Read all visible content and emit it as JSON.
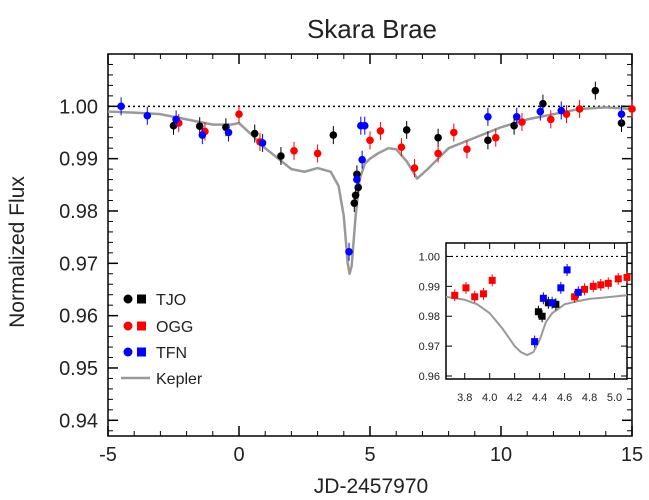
{
  "chart_data": {
    "type": "scatter",
    "title": "Skara Brae",
    "xlabel": "JD-2457970",
    "ylabel": "Normalized Flux",
    "xlim": [
      -5,
      15
    ],
    "ylim": [
      0.937,
      1.01
    ],
    "x_ticks": [
      "-5",
      "0",
      "5",
      "10",
      "15"
    ],
    "y_ticks": [
      "0.94",
      "0.95",
      "0.96",
      "0.97",
      "0.98",
      "0.99",
      "1.00"
    ],
    "reference_line": 1.0,
    "legend": {
      "placement": "bottom-left",
      "entries": [
        {
          "label": "TJO",
          "color": "#000000"
        },
        {
          "label": "OGG",
          "color": "#ff0000"
        },
        {
          "label": "TFN",
          "color": "#0000ff"
        },
        {
          "label": "Kepler",
          "color": "#999999"
        }
      ]
    },
    "series": [
      {
        "name": "TJO",
        "color": "#000000",
        "points": [
          {
            "x": -2.5,
            "y": 0.9963
          },
          {
            "x": -1.5,
            "y": 0.9962
          },
          {
            "x": -0.5,
            "y": 0.996
          },
          {
            "x": 0.6,
            "y": 0.9948
          },
          {
            "x": 1.6,
            "y": 0.9905
          },
          {
            "x": 3.6,
            "y": 0.9945
          },
          {
            "x": 4.4,
            "y": 0.9815
          },
          {
            "x": 4.45,
            "y": 0.983
          },
          {
            "x": 4.5,
            "y": 0.987
          },
          {
            "x": 4.55,
            "y": 0.9845
          },
          {
            "x": 6.4,
            "y": 0.9955
          },
          {
            "x": 7.6,
            "y": 0.994
          },
          {
            "x": 9.5,
            "y": 0.9935
          },
          {
            "x": 10.5,
            "y": 0.9963
          },
          {
            "x": 11.6,
            "y": 1.0005
          },
          {
            "x": 13.6,
            "y": 1.003
          },
          {
            "x": 14.6,
            "y": 0.9968
          }
        ]
      },
      {
        "name": "OGG",
        "color": "#ff0000",
        "points": [
          {
            "x": -2.3,
            "y": 0.9968
          },
          {
            "x": -1.3,
            "y": 0.9952
          },
          {
            "x": 0.0,
            "y": 0.9985
          },
          {
            "x": 0.8,
            "y": 0.9932
          },
          {
            "x": 2.1,
            "y": 0.9915
          },
          {
            "x": 3.0,
            "y": 0.991
          },
          {
            "x": 5.0,
            "y": 0.9935
          },
          {
            "x": 5.4,
            "y": 0.9953
          },
          {
            "x": 6.2,
            "y": 0.9922
          },
          {
            "x": 6.7,
            "y": 0.9882
          },
          {
            "x": 7.6,
            "y": 0.991
          },
          {
            "x": 8.2,
            "y": 0.995
          },
          {
            "x": 8.7,
            "y": 0.9918
          },
          {
            "x": 9.8,
            "y": 0.994
          },
          {
            "x": 10.8,
            "y": 0.997
          },
          {
            "x": 11.9,
            "y": 0.9975
          },
          {
            "x": 12.5,
            "y": 0.9985
          },
          {
            "x": 13.0,
            "y": 0.9995
          },
          {
            "x": 15.0,
            "y": 0.9995
          }
        ]
      },
      {
        "name": "TFN",
        "color": "#0000ff",
        "points": [
          {
            "x": -4.5,
            "y": 1.0
          },
          {
            "x": -3.5,
            "y": 0.9982
          },
          {
            "x": -2.4,
            "y": 0.9975
          },
          {
            "x": -1.4,
            "y": 0.9945
          },
          {
            "x": -0.4,
            "y": 0.995
          },
          {
            "x": 0.9,
            "y": 0.993
          },
          {
            "x": 4.2,
            "y": 0.9722
          },
          {
            "x": 4.5,
            "y": 0.986
          },
          {
            "x": 4.65,
            "y": 0.9963
          },
          {
            "x": 4.7,
            "y": 0.9898
          },
          {
            "x": 4.8,
            "y": 0.9963
          },
          {
            "x": 9.5,
            "y": 0.998
          },
          {
            "x": 10.6,
            "y": 0.998
          },
          {
            "x": 11.5,
            "y": 0.999
          },
          {
            "x": 12.3,
            "y": 0.9992
          },
          {
            "x": 14.6,
            "y": 0.9985
          }
        ]
      }
    ],
    "kepler": {
      "name": "Kepler",
      "color": "#999999",
      "x": [
        -5.0,
        -4.0,
        -3.0,
        -2.0,
        -1.0,
        -0.3,
        0.0,
        0.5,
        1.0,
        1.5,
        2.0,
        2.5,
        3.0,
        3.5,
        3.8,
        4.0,
        4.15,
        4.22,
        4.3,
        4.45,
        4.6,
        4.8,
        5.0,
        5.3,
        5.7,
        6.0,
        6.4,
        6.8,
        7.2,
        7.6,
        8.0,
        9.0,
        10.0,
        11.0,
        12.0,
        13.0,
        14.0,
        15.0
      ],
      "y": [
        0.999,
        0.9988,
        0.9985,
        0.9975,
        0.9965,
        0.9965,
        0.9968,
        0.9945,
        0.992,
        0.99,
        0.988,
        0.9875,
        0.9882,
        0.9875,
        0.9848,
        0.979,
        0.97,
        0.968,
        0.9695,
        0.979,
        0.986,
        0.989,
        0.99,
        0.991,
        0.992,
        0.9918,
        0.9895,
        0.9862,
        0.988,
        0.99,
        0.992,
        0.994,
        0.996,
        0.9975,
        0.9985,
        0.9995,
        0.9998,
        0.9995
      ]
    },
    "inset": {
      "xlim": [
        3.65,
        5.1
      ],
      "ylim": [
        0.959,
        1.0045
      ],
      "x_ticks": [
        "3.8",
        "4.0",
        "4.2",
        "4.4",
        "4.6",
        "4.8",
        "5.0"
      ],
      "y_ticks": [
        "0.96",
        "0.97",
        "0.98",
        "0.99",
        "1.00"
      ],
      "series": [
        {
          "name": "OGG",
          "color": "#ff0000",
          "points": [
            {
              "x": 3.72,
              "y": 0.987
            },
            {
              "x": 3.81,
              "y": 0.9895
            },
            {
              "x": 3.88,
              "y": 0.9865
            },
            {
              "x": 3.95,
              "y": 0.9875
            },
            {
              "x": 4.02,
              "y": 0.992
            },
            {
              "x": 4.68,
              "y": 0.9865
            },
            {
              "x": 4.76,
              "y": 0.989
            },
            {
              "x": 4.83,
              "y": 0.99
            },
            {
              "x": 4.89,
              "y": 0.9905
            },
            {
              "x": 4.95,
              "y": 0.991
            },
            {
              "x": 5.03,
              "y": 0.9925
            },
            {
              "x": 5.1,
              "y": 0.993
            }
          ]
        },
        {
          "name": "TJO",
          "color": "#000000",
          "points": [
            {
              "x": 4.39,
              "y": 0.9815
            },
            {
              "x": 4.42,
              "y": 0.98
            },
            {
              "x": 4.47,
              "y": 0.9845
            },
            {
              "x": 4.53,
              "y": 0.984
            }
          ]
        },
        {
          "name": "TFN",
          "color": "#0000ff",
          "points": [
            {
              "x": 4.36,
              "y": 0.9715
            },
            {
              "x": 4.43,
              "y": 0.986
            },
            {
              "x": 4.5,
              "y": 0.9845
            },
            {
              "x": 4.57,
              "y": 0.9895
            },
            {
              "x": 4.62,
              "y": 0.9955
            },
            {
              "x": 4.71,
              "y": 0.988
            }
          ]
        }
      ],
      "kepler": {
        "x": [
          3.65,
          3.8,
          3.9,
          4.0,
          4.1,
          4.2,
          4.25,
          4.3,
          4.35,
          4.4,
          4.45,
          4.5,
          4.6,
          4.7,
          4.8,
          4.9,
          5.0,
          5.1
        ],
        "y": [
          0.9865,
          0.9855,
          0.984,
          0.981,
          0.976,
          0.97,
          0.968,
          0.967,
          0.968,
          0.972,
          0.978,
          0.981,
          0.984,
          0.985,
          0.9858,
          0.9862,
          0.9866,
          0.987
        ]
      }
    }
  }
}
